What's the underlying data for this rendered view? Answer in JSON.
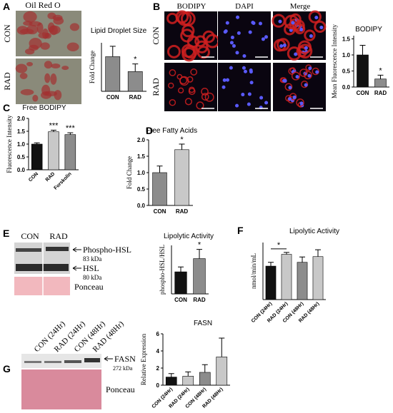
{
  "chart_data": [
    {
      "type": "bar",
      "title": "Lipid Droplet Size",
      "y_label": "Fold Change",
      "categories": [
        "CON",
        "RAD"
      ],
      "values": [
        1.0,
        0.57
      ],
      "errors": [
        0.3,
        0.22
      ],
      "colors": [
        "#8c8c8c",
        "#8c8c8c"
      ],
      "ylim": [
        0,
        1.4
      ],
      "annotations": [
        null,
        "*"
      ]
    },
    {
      "type": "bar",
      "title": "BODIPY",
      "y_label": "Mean Fluorescence Intensity",
      "categories": [
        "CON",
        "RAD"
      ],
      "values": [
        1.0,
        0.25
      ],
      "errors": [
        0.3,
        0.12
      ],
      "colors": [
        "#111111",
        "#8c8c8c"
      ],
      "ylim": [
        0,
        1.6
      ],
      "yticks": [
        {
          "value": 0,
          "label": "0.0"
        },
        0.5,
        {
          "value": 1,
          "label": "1.0"
        },
        1.5
      ],
      "annotations": [
        null,
        "*"
      ]
    },
    {
      "type": "bar",
      "panel": "C",
      "title": "Free BODIPY",
      "y_label": "Fluorescence Intensity",
      "categories": [
        "CON",
        "RAD",
        "Forskolin"
      ],
      "values": [
        1.0,
        1.48,
        1.37
      ],
      "errors": [
        0.05,
        0.06,
        0.07
      ],
      "colors": [
        "#111111",
        "#c8c8c8",
        "#8c8c8c"
      ],
      "ylim": [
        0,
        2
      ],
      "yticks": [
        {
          "value": 0,
          "label": "0.0"
        },
        0.5,
        {
          "value": 1,
          "label": "1.0"
        },
        1.5,
        {
          "value": 2,
          "label": "2.0"
        }
      ],
      "annotations": [
        null,
        "***",
        "***"
      ]
    },
    {
      "type": "bar",
      "panel": "D",
      "title": "Free Fatty Acids",
      "y_label": "Fold Change",
      "categories": [
        "CON",
        "RAD"
      ],
      "values": [
        1.0,
        1.7
      ],
      "errors": [
        0.2,
        0.17
      ],
      "colors": [
        "#8c8c8c",
        "#c8c8c8"
      ],
      "ylim": [
        0,
        2
      ],
      "yticks": [
        {
          "value": 0,
          "label": "0.0"
        },
        0.5,
        {
          "value": 1,
          "label": "1.0"
        },
        1.5,
        {
          "value": 2,
          "label": "2.0"
        }
      ],
      "annotations": [
        null,
        "*"
      ]
    },
    {
      "type": "bar",
      "title": "Lipolytic Activity",
      "y_label": "phospho-HSL/HSL",
      "categories": [
        "CON",
        "RAD"
      ],
      "values": [
        1.0,
        1.6
      ],
      "errors": [
        0.22,
        0.42
      ],
      "colors": [
        "#111111",
        "#8c8c8c"
      ],
      "ylim": [
        0,
        2.2
      ],
      "annotations": [
        null,
        "*"
      ]
    },
    {
      "type": "bar",
      "panel": "F",
      "title": "Lipolytic Activity",
      "y_label": "nmol/min/mL",
      "categories": [
        "CON (24Hr)",
        "RAD (24Hr)",
        "CON (48Hr)",
        "RAD (48Hr)"
      ],
      "values": [
        0.88,
        1.19,
        0.98,
        1.13
      ],
      "errors": [
        0.1,
        0.05,
        0.14,
        0.18
      ],
      "colors": [
        "#111111",
        "#c8c8c8",
        "#8c8c8c",
        "#c8c8c8"
      ],
      "ylim": [
        0,
        1.5
      ],
      "annotations": [
        null,
        "*",
        null,
        null
      ],
      "bracket": true
    },
    {
      "type": "bar",
      "title": "FASN",
      "y_label": "Relative Expression",
      "categories": [
        "CON (24Hr)",
        "RAD (24Hr)",
        "CON (48Hr)",
        "RAD (48Hr)"
      ],
      "values": [
        0.95,
        1.05,
        1.5,
        3.3
      ],
      "errors": [
        0.4,
        0.5,
        0.9,
        2.2
      ],
      "colors": [
        "#111111",
        "#c8c8c8",
        "#8c8c8c",
        "#c8c8c8"
      ],
      "ylim": [
        0,
        6
      ],
      "yticks": [
        0,
        2,
        4,
        6
      ]
    }
  ],
  "images": {
    "A": {
      "letter": "A",
      "title": "Oil Red O",
      "rows": [
        "CON",
        "RAD"
      ]
    },
    "B": {
      "letter": "B",
      "columns": [
        "BODIPY",
        "DAPI",
        "Merge"
      ],
      "rows": [
        "CON",
        "RAD"
      ]
    },
    "E": {
      "letter": "E",
      "columns": [
        "CON",
        "RAD"
      ],
      "bands": [
        {
          "name": "Phospho-HSL",
          "size": "83 kDa"
        },
        {
          "name": "HSL",
          "size": "80 kDa"
        },
        {
          "name": "Ponceau"
        }
      ]
    },
    "G": {
      "letter": "G",
      "columns": [
        "CON (24Hr)",
        "RAD (24Hr)",
        "CON (48Hr)",
        "RAD (48Hr)"
      ],
      "bands": [
        {
          "name": "FASN",
          "size": "272 kDa"
        },
        {
          "name": "Ponceau"
        }
      ]
    }
  }
}
